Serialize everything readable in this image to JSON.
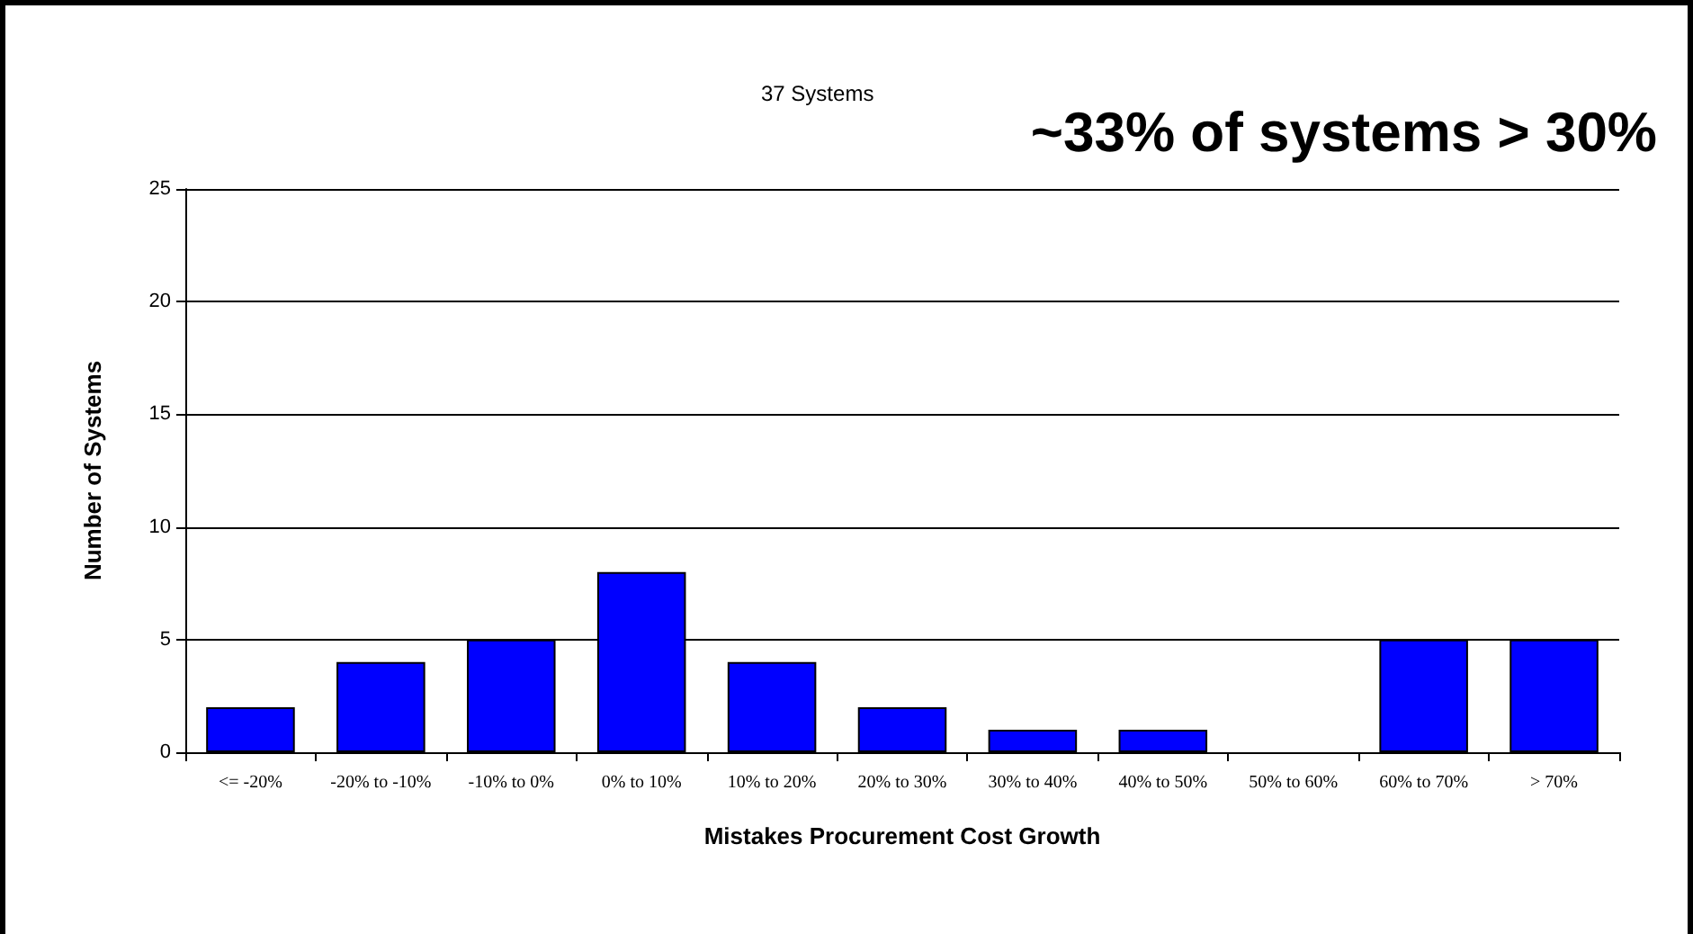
{
  "chart_data": {
    "type": "bar",
    "title": "37 Systems",
    "annotations": [
      "~33% of systems > 30%"
    ],
    "xlabel": "Mistakes Procurement Cost Growth",
    "ylabel": "Number of Systems",
    "categories": [
      "<= -20%",
      "-20% to -10%",
      "-10% to 0%",
      "0% to 10%",
      "10% to 20%",
      "20% to 30%",
      "30% to 40%",
      "40% to 50%",
      "50% to 60%",
      "60% to 70%",
      "> 70%"
    ],
    "values": [
      2,
      4,
      5,
      8,
      4,
      2,
      1,
      1,
      0,
      5,
      5
    ],
    "color": "#0000ff",
    "ylim": [
      0,
      25
    ],
    "yticks": [
      0,
      5,
      10,
      15,
      20,
      25
    ],
    "grid": "y"
  }
}
